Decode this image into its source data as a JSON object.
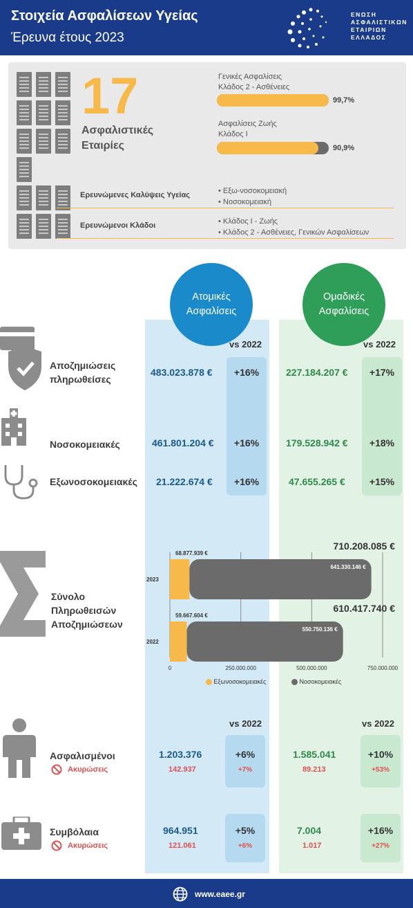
{
  "header": {
    "title": "Στοιχεία Ασφαλίσεων Υγείας",
    "subtitle": "Έρευνα έτους 2023",
    "logo_lines": [
      "ΕΝΩΣΗ",
      "ΑΣΦΑΛΙΣΤΙΚΩΝ",
      "ΕΤΑΙΡΙΩΝ",
      "ΕΛΛΑΔΟΣ"
    ]
  },
  "summary": {
    "companies_count": "17",
    "companies_label_1": "Ασφαλιστικές",
    "companies_label_2": "Εταιρίες",
    "bar1_label_1": "Γενικές Ασφαλίσεις",
    "bar1_label_2": "Κλάδος 2 - Ασθένειες",
    "bar1_pct": "99,7%",
    "bar1_value": 99.7,
    "bar2_label_1": "Ασφαλίσεις Ζωής",
    "bar2_label_2": "Κλάδος Ι",
    "bar2_pct": "90,9%",
    "bar2_value": 90.9,
    "coverage_label": "Ερευνώμενες Καλύψεις Υγείας",
    "coverage_items": [
      "Εξω-νοσοκομειακή",
      "Νοσοκομειακή"
    ],
    "branches_label": "Ερευνώμενοι Κλάδοι",
    "branches_items": [
      "Κλάδος Ι - Ζωής",
      "Κλάδος 2 - Ασθένειες, Γενικών Ασφαλίσεων"
    ]
  },
  "columns": {
    "individual": "Ατομικές Ασφαλίσεις",
    "group": "Ομαδικές Ασφαλίσεις",
    "vs": "vs 2022"
  },
  "claims": {
    "paid_label_1": "Αποζημιώσεις",
    "paid_label_2": "πληρωθείσες",
    "paid_ind": "483.023.878 €",
    "paid_ind_chg": "+16%",
    "paid_grp": "227.184.207 €",
    "paid_grp_chg": "+17%",
    "hosp_label": "Νοσοκομειακές",
    "hosp_ind": "461.801.204 €",
    "hosp_ind_chg": "+16%",
    "hosp_grp": "179.528.942 €",
    "hosp_grp_chg": "+18%",
    "out_label": "Εξωνοσοκομειακές",
    "out_ind": "21.222.674 €",
    "out_ind_chg": "+16%",
    "out_grp": "47.655.265 €",
    "out_grp_chg": "+15%"
  },
  "chart_data": {
    "type": "bar",
    "orientation": "horizontal",
    "stacked": true,
    "title": "Σύνολο Πληρωθεισών Αποζημιώσεων",
    "categories": [
      "2023",
      "2022"
    ],
    "series": [
      {
        "name": "Εξωνοσοκομειακές",
        "values": [
          68877939,
          59667604
        ],
        "color": "#f7b94a"
      },
      {
        "name": "Νοσοκομειακές",
        "values": [
          641330146,
          550750136
        ],
        "color": "#6b6b6b"
      }
    ],
    "series_labels": [
      [
        "68.877.939 €",
        "59.667.604 €"
      ],
      [
        "641.330.146 €",
        "550.750.136 €"
      ]
    ],
    "totals": [
      710208085,
      610417740
    ],
    "total_labels": [
      "710.208.085 €",
      "610.417.740 €"
    ],
    "xlim": [
      0,
      750000000
    ],
    "xticks": [
      0,
      250000000,
      500000000,
      750000000
    ],
    "xtick_labels": [
      "0",
      "250.000.000",
      "500.000.000",
      "750.000.000"
    ],
    "title_lines": [
      "Σύνολο",
      "Πληρωθεισών",
      "Αποζημιώσεων"
    ]
  },
  "insured": {
    "label": "Ασφαλισμένοι",
    "cancel_label": "Ακυρώσεις",
    "ind": "1.203.376",
    "ind_chg": "+6%",
    "ind_cancel": "142.937",
    "ind_cancel_chg": "+7%",
    "grp": "1.585.041",
    "grp_chg": "+10%",
    "grp_cancel": "89.213",
    "grp_cancel_chg": "+53%"
  },
  "contracts": {
    "label": "Συμβόλαια",
    "cancel_label": "Ακυρώσεις",
    "ind": "964.951",
    "ind_chg": "+5%",
    "ind_cancel": "121.061",
    "ind_cancel_chg": "+6%",
    "grp": "7.004",
    "grp_chg": "+16%",
    "grp_cancel": "1.017",
    "grp_cancel_chg": "+27%"
  },
  "footer": {
    "url": "www.eaee.gr"
  },
  "icons": [
    "shield-check-icon",
    "hospital-icon",
    "stethoscope-icon",
    "sigma-icon",
    "person-icon",
    "no-entry-icon",
    "medical-kit-icon",
    "globe-icon",
    "building-icon"
  ]
}
